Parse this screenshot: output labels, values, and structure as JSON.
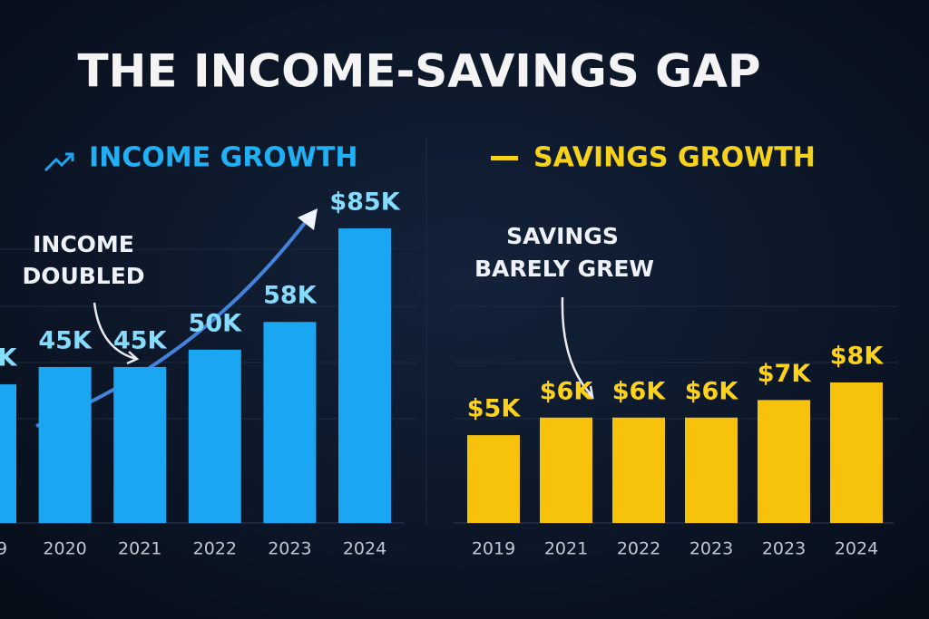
{
  "title": "THE INCOME-SAVINGS GAP",
  "chart_data": [
    {
      "type": "bar",
      "title": "INCOME GROWTH",
      "color": "#1aa6f2",
      "categories": [
        "9",
        "2020",
        "2021",
        "2022",
        "2023",
        "2024"
      ],
      "values": [
        40,
        45,
        45,
        50,
        58,
        85
      ],
      "value_labels": [
        "K",
        "45K",
        "45K",
        "50K",
        "58K",
        "$85K"
      ],
      "annotation": [
        "INCOME",
        "DOUBLED"
      ]
    },
    {
      "type": "bar",
      "title": "SAVINGS GROWTH",
      "color": "#f7c20c",
      "categories": [
        "2019",
        "2021",
        "2022",
        "2023",
        "2023",
        "2024"
      ],
      "values": [
        5,
        6,
        6,
        6,
        7,
        8
      ],
      "value_labels": [
        "$5K",
        "$6K",
        "$6K",
        "$6K",
        "$7K",
        "$8K"
      ],
      "annotation": [
        "SAVINGS",
        "BARELY GREW"
      ]
    }
  ]
}
